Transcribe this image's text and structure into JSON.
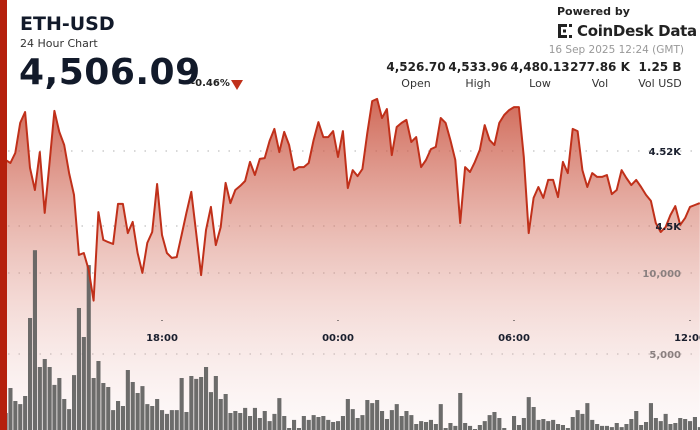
{
  "header": {
    "symbol": "ETH-USD",
    "subtitle": "24 Hour Chart",
    "price": "4,506.09",
    "change": "-0.46%",
    "change_direction": "down",
    "powered_by": "Powered by",
    "brand": "CoinDesk Data",
    "timestamp": "16 Sep 2025 12:24 (GMT)"
  },
  "stats": [
    {
      "value": "4,526.70",
      "label": "Open"
    },
    {
      "value": "4,533.96",
      "label": "High"
    },
    {
      "value": "4,480.13",
      "label": "Low"
    },
    {
      "value": "277.86 K",
      "label": "Vol"
    },
    {
      "value": "1.25 B",
      "label": "Vol USD"
    }
  ],
  "colors": {
    "accent": "#b5200d",
    "line": "#c0301a",
    "fill": "#c8503c",
    "volume": "#5f605e",
    "grid": "#b0b0b0"
  },
  "chart_data": {
    "type": "area",
    "grid": true,
    "x_tick_labels": [
      "18:00",
      "00:00",
      "06:00",
      "12:00"
    ],
    "price_tick_labels": [
      "4.52K",
      "4.5K"
    ],
    "price_ticks": [
      4520,
      4500
    ],
    "volume_tick_labels": [
      "10,000",
      "5,000"
    ],
    "volume_ticks": [
      10000,
      5000
    ],
    "x": [
      "12:40",
      "12:50",
      "13:00",
      "13:10",
      "13:20",
      "13:30",
      "13:40",
      "13:50",
      "14:00",
      "14:10",
      "14:20",
      "14:30",
      "14:40",
      "14:50",
      "15:00",
      "15:10",
      "15:20",
      "15:30",
      "15:40",
      "15:50",
      "16:00",
      "16:10",
      "16:20",
      "16:30",
      "16:40",
      "16:50",
      "17:00",
      "17:10",
      "17:20",
      "17:30",
      "17:40",
      "17:50",
      "18:00",
      "18:10",
      "18:20",
      "18:30",
      "18:40",
      "18:50",
      "19:00",
      "19:10",
      "19:20",
      "19:30",
      "19:40",
      "19:50",
      "20:00",
      "20:10",
      "20:20",
      "20:30",
      "20:40",
      "20:50",
      "21:00",
      "21:10",
      "21:20",
      "21:30",
      "21:40",
      "21:50",
      "22:00",
      "22:10",
      "22:20",
      "22:30",
      "22:40",
      "22:50",
      "23:00",
      "23:10",
      "23:20",
      "23:30",
      "23:40",
      "23:50",
      "00:00",
      "00:10",
      "00:20",
      "00:30",
      "00:40",
      "00:50",
      "01:00",
      "01:10",
      "01:20",
      "01:30",
      "01:40",
      "01:50",
      "02:00",
      "02:10",
      "02:20",
      "02:30",
      "02:40",
      "02:50",
      "03:00",
      "03:10",
      "03:20",
      "03:30",
      "03:40",
      "03:50",
      "04:00",
      "04:10",
      "04:20",
      "04:30",
      "04:40",
      "04:50",
      "05:00",
      "05:10",
      "05:20",
      "05:30",
      "05:40",
      "05:50",
      "06:00",
      "06:10",
      "06:20",
      "06:30",
      "06:40",
      "06:50",
      "07:00",
      "07:10",
      "07:20",
      "07:30",
      "07:40",
      "07:50",
      "08:00",
      "08:10",
      "08:20",
      "08:30",
      "08:40",
      "08:50",
      "09:00",
      "09:10",
      "09:20",
      "09:30",
      "09:40",
      "09:50",
      "10:00",
      "10:10",
      "10:20",
      "10:30",
      "10:40",
      "10:50",
      "11:00",
      "11:10",
      "11:20",
      "11:30",
      "11:40",
      "11:50",
      "12:00",
      "12:10",
      "12:20"
    ],
    "series": [
      {
        "values": [
          4517.6,
          4516.8,
          4519.5,
          4527.5,
          4530.4,
          4515.5,
          4509.6,
          4519.7,
          4503.5,
          4517.0,
          4530.7,
          4525.1,
          4521.6,
          4514.1,
          4508.3,
          4492.3,
          4492.8,
          4488.3,
          4480.1,
          4503.7,
          4496.3,
          4495.7,
          4495.2,
          4505.9,
          4505.9,
          4498.1,
          4501.1,
          4492.8,
          4487.5,
          4495.5,
          4498.4,
          4511.2,
          4497.6,
          4492.8,
          4491.5,
          4491.7,
          4497.6,
          4503.5,
          4509.1,
          4498.1,
          4486.9,
          4498.9,
          4505.1,
          4494.9,
          4499.7,
          4511.5,
          4506.1,
          4509.6,
          4510.7,
          4512.0,
          4517.1,
          4513.6,
          4517.9,
          4518.1,
          4522.7,
          4525.9,
          4519.7,
          4525.1,
          4521.6,
          4514.9,
          4515.7,
          4515.7,
          4516.8,
          4522.9,
          4527.7,
          4523.7,
          4523.7,
          4525.3,
          4518.4,
          4525.3,
          4510.1,
          4514.9,
          4513.3,
          4515.2,
          4524.8,
          4533.3,
          4533.9,
          4528.8,
          4531.2,
          4518.9,
          4526.4,
          4527.5,
          4528.3,
          4522.4,
          4523.7,
          4515.7,
          4517.6,
          4520.5,
          4521.1,
          4528.8,
          4527.5,
          4522.9,
          4517.6,
          4500.8,
          4515.7,
          4514.4,
          4517.1,
          4520.3,
          4526.9,
          4522.9,
          4521.6,
          4527.5,
          4529.6,
          4530.9,
          4531.7,
          4531.7,
          4518.4,
          4498.1,
          4507.5,
          4510.4,
          4507.5,
          4512.3,
          4512.3,
          4507.7,
          4517.1,
          4514.1,
          4525.9,
          4525.3,
          4514.9,
          4510.4,
          4514.1,
          4513.1,
          4513.1,
          4513.6,
          4508.5,
          4509.6,
          4514.9,
          4512.8,
          4510.9,
          4512.3,
          4510.4,
          4508.3,
          4506.7,
          4500.8,
          4498.4,
          4499.7,
          4502.9,
          4505.3,
          4500.3,
          4502.1,
          4505.1,
          4505.6,
          4506.1
        ]
      },
      {
        "values": [
          1360,
          2900,
          2100,
          1910,
          2410,
          7220,
          11410,
          4200,
          4690,
          4200,
          3090,
          3520,
          2220,
          1600,
          3700,
          7840,
          6050,
          10490,
          3520,
          4570,
          3210,
          2960,
          1540,
          2100,
          1790,
          4010,
          3270,
          2590,
          3020,
          1910,
          1790,
          2220,
          1540,
          1300,
          1540,
          1540,
          3520,
          1420,
          3640,
          3460,
          3580,
          4200,
          2650,
          3640,
          2220,
          2530,
          1360,
          1480,
          1360,
          1670,
          1170,
          1670,
          1050,
          1480,
          860,
          1300,
          2280,
          1170,
          430,
          930,
          430,
          1170,
          930,
          1230,
          1110,
          1170,
          930,
          800,
          860,
          1170,
          2220,
          1600,
          1050,
          1230,
          2160,
          1970,
          2160,
          1480,
          990,
          1540,
          1910,
          1170,
          1480,
          1230,
          680,
          860,
          800,
          930,
          680,
          1910,
          430,
          740,
          560,
          2590,
          740,
          560,
          370,
          620,
          860,
          1230,
          1420,
          1050,
          430,
          310,
          1170,
          620,
          1050,
          2340,
          1730,
          930,
          990,
          860,
          930,
          680,
          620,
          430,
          1110,
          1540,
          1300,
          1970,
          930,
          680,
          560,
          560,
          490,
          740,
          490,
          680,
          990,
          1480,
          620,
          800,
          1970,
          1050,
          860,
          1300,
          680,
          740,
          1050,
          990,
          860,
          1110,
          490
        ]
      }
    ]
  }
}
